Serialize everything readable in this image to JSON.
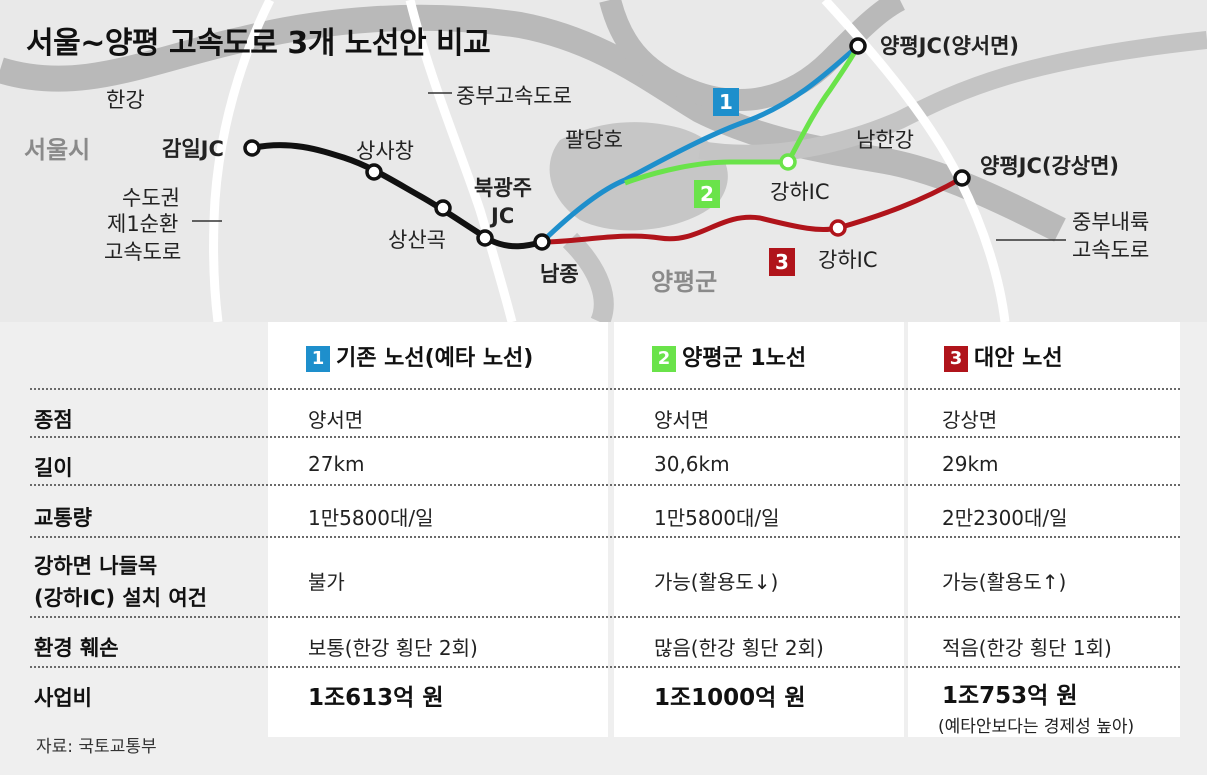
{
  "title": "서울~양평 고속도로 3개 노선안 비교",
  "map": {
    "labels": {
      "hangang": "한강",
      "seoul": "서울시",
      "gangil_jc": "감일JC",
      "sangsachang": "상사창",
      "sangsangok": "상산곡",
      "bukgwangju": "북광주",
      "jc": "JC",
      "namjong": "남종",
      "paldangho": "팔당호",
      "jungbu_expressway": "중부고속도로",
      "metro_ring_1": "수도권",
      "metro_ring_2": "제1순환",
      "metro_ring_3": "고속도로",
      "yangpyeong_jc_yangseo": "양평JC(양서면)",
      "yangpyeong_jc_gangsang": "양평JC(강상면)",
      "namhangang": "남한강",
      "gangha_ic_1": "강하IC",
      "gangha_ic_2": "강하IC",
      "yangpyeong_gun": "양평군",
      "jungbu_inland_1": "중부내륙",
      "jungbu_inland_2": "고속도로"
    },
    "badges": {
      "route1": "1",
      "route2": "2",
      "route3": "3"
    }
  },
  "colors": {
    "route1": "#1e8fcc",
    "route2": "#6ae34a",
    "route3": "#b0141b",
    "existing": "#111111"
  },
  "table": {
    "columns": [
      {
        "num": "1",
        "name": "기존 노선(예타 노선)"
      },
      {
        "num": "2",
        "name": "양평군 1노선"
      },
      {
        "num": "3",
        "name": "대안 노선"
      }
    ],
    "rows": {
      "endpoint": {
        "label": "종점",
        "values": [
          "양서면",
          "양서면",
          "강상면"
        ]
      },
      "length": {
        "label": "길이",
        "values": [
          "27km",
          "30,6km",
          "29km"
        ]
      },
      "traffic": {
        "label": "교통량",
        "values": [
          "1만5800대/일",
          "1만5800대/일",
          "2만2300대/일"
        ]
      },
      "ic": {
        "label1": "강하면 나들목",
        "label2": "(강하IC) 설치 여건",
        "values": [
          "불가",
          "가능(활용도↓)",
          "가능(활용도↑)"
        ]
      },
      "env": {
        "label": "환경 훼손",
        "values": [
          "보통(한강 횡단 2회)",
          "많음(한강 횡단 2회)",
          "적음(한강 횡단 1회)"
        ]
      },
      "cost": {
        "label": "사업비",
        "values": [
          "1조613억 원",
          "1조1000억 원",
          "1조753억 원"
        ],
        "note": "(예타안보다는 경제성 높아)"
      }
    },
    "source": "자료: 국토교통부"
  }
}
